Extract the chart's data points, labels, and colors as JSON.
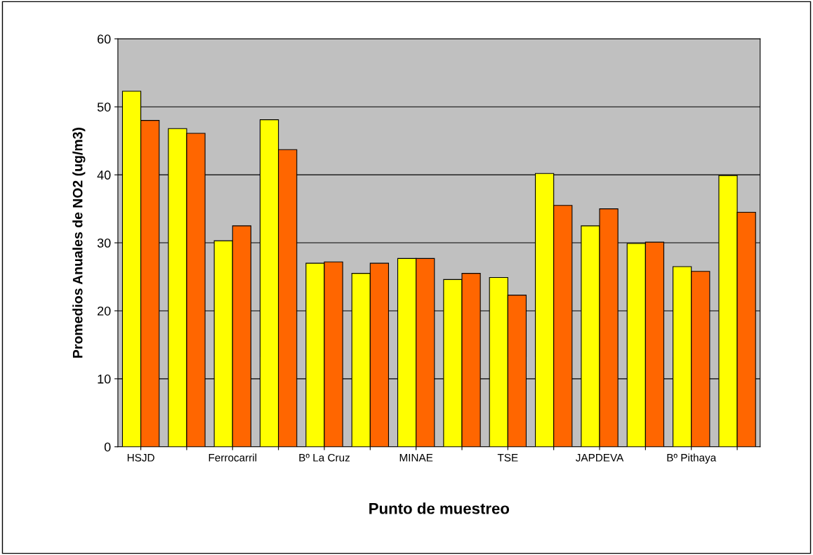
{
  "chart_data": {
    "type": "bar",
    "xlabel": "Punto de muestreo",
    "ylabel": "Promedios Anuales de NO2 (ug/m3)",
    "categories": [
      "HSJD",
      null,
      "Ferrocarril",
      null,
      "Bº La Cruz",
      null,
      "MINAE",
      null,
      "TSE",
      null,
      "JAPDEVA",
      null,
      "Bº Pithaya",
      null
    ],
    "series": [
      {
        "color": "#ffff00",
        "values": [
          52.3,
          46.8,
          30.3,
          48.1,
          27.0,
          25.5,
          27.7,
          24.6,
          24.9,
          40.2,
          32.5,
          29.9,
          26.5,
          39.9
        ]
      },
      {
        "color": "#ff6600",
        "values": [
          48.0,
          46.1,
          32.5,
          43.7,
          27.2,
          27.0,
          27.7,
          25.5,
          22.3,
          35.5,
          35.0,
          30.1,
          25.8,
          34.5
        ]
      }
    ],
    "ylim": [
      0,
      60
    ],
    "yticks": [
      0,
      10,
      20,
      30,
      40,
      50,
      60
    ],
    "grid": "y",
    "legend": false
  }
}
